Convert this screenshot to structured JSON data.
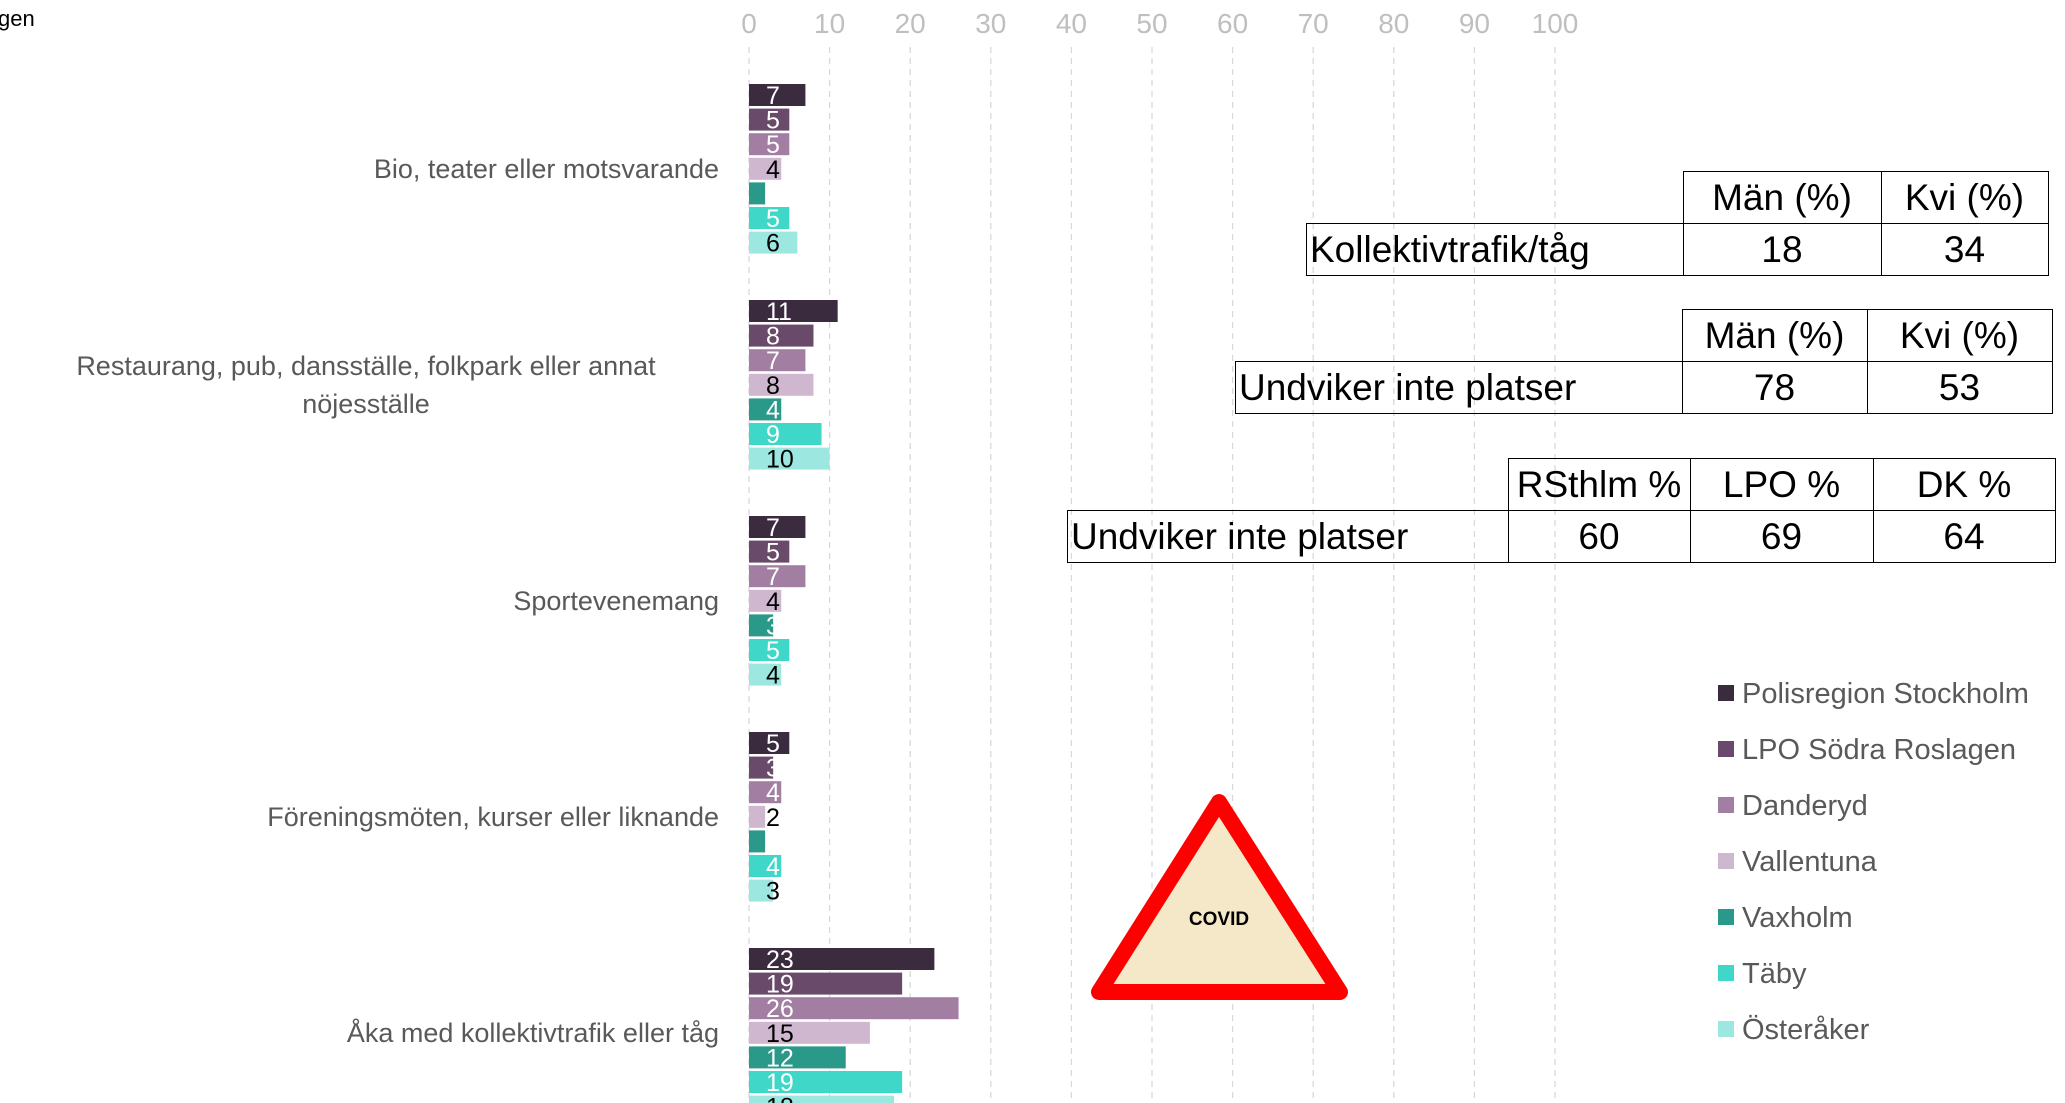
{
  "chart_data": {
    "type": "bar",
    "orientation": "horizontal",
    "title": "gen",
    "categories": [
      "Bio, teater eller motsvarande",
      "Restaurang, pub, dansställe, folkpark eller annat nöjesställe",
      "Sportevenemang",
      "Föreningsmöten, kurser eller liknande",
      "Åka med kollektivtrafik eller tåg"
    ],
    "series": [
      {
        "name": "Polisregion Stockholm",
        "color": "#3b2b3f",
        "label_color": "#ffffff",
        "values": [
          7,
          11,
          7,
          5,
          23
        ]
      },
      {
        "name": "LPO Södra Roslagen",
        "color": "#6a4a6a",
        "label_color": "#ffffff",
        "values": [
          5,
          8,
          5,
          3,
          19
        ]
      },
      {
        "name": "Danderyd",
        "color": "#a27fa2",
        "label_color": "#ffffff",
        "values": [
          5,
          7,
          7,
          4,
          26
        ]
      },
      {
        "name": "Vallentuna",
        "color": "#cfb8cf",
        "label_color": "#000000",
        "values": [
          4,
          8,
          4,
          2,
          15
        ]
      },
      {
        "name": "Vaxholm",
        "color": "#2a998a",
        "label_color": "#ffffff",
        "values": [
          2,
          4,
          3,
          2,
          12
        ],
        "value_labels": [
          null,
          4,
          3,
          null,
          12
        ]
      },
      {
        "name": "Täby",
        "color": "#3fd7c7",
        "label_color": "#ffffff",
        "values": [
          5,
          9,
          5,
          4,
          19
        ]
      },
      {
        "name": "Österåker",
        "color": "#9ce8e1",
        "label_color": "#000000",
        "values": [
          6,
          10,
          4,
          3,
          18
        ]
      }
    ],
    "xlim": [
      0,
      100
    ],
    "xticks": [
      0,
      10,
      20,
      30,
      40,
      50,
      60,
      70,
      80,
      90,
      100
    ],
    "grid": true,
    "legend": "right",
    "annotations": [
      "COVID"
    ]
  },
  "tables": [
    {
      "header": [
        "Män (%)",
        "Kvi (%)"
      ],
      "rows": [
        [
          "Kollektivtrafik/tåg",
          18,
          34
        ]
      ]
    },
    {
      "header": [
        "Män (%)",
        "Kvi (%)"
      ],
      "rows": [
        [
          "Undviker inte platser",
          78,
          53
        ]
      ]
    },
    {
      "header": [
        "RSthlm %",
        "LPO %",
        "DK %"
      ],
      "rows": [
        [
          "Undviker inte platser",
          60,
          69,
          64
        ]
      ]
    }
  ]
}
